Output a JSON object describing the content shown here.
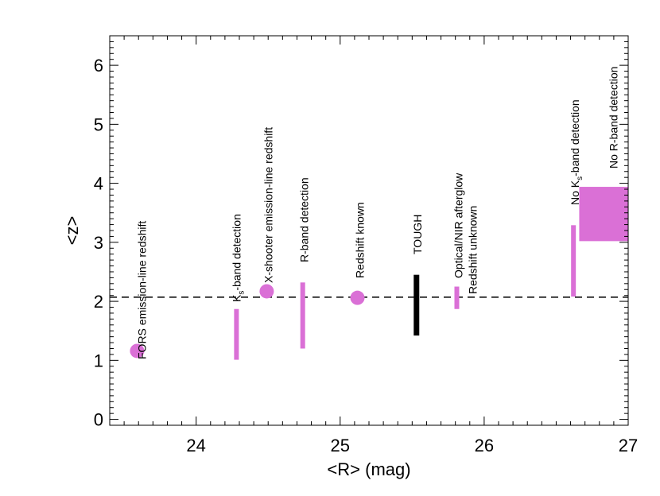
{
  "chart_data": {
    "type": "scatter",
    "title": "",
    "xlabel": "<R> (mag)",
    "ylabel": "<z>",
    "xlim": [
      23.4,
      27.0
    ],
    "ylim": [
      -0.1,
      6.5
    ],
    "xticks": [
      24,
      25,
      26,
      27
    ],
    "yticks": [
      0,
      1,
      2,
      3,
      4,
      5,
      6
    ],
    "grid": false,
    "colors": {
      "magenta": "#da70d6",
      "black": "#000000"
    },
    "reference_line": {
      "style": "dashed",
      "y": 2.07
    },
    "points": [
      {
        "kind": "circle",
        "x": 23.59,
        "y": 1.16,
        "color": "#da70d6",
        "label": [
          {
            "pre": "FORS emission-line redshift",
            "sub": "",
            "post": ""
          }
        ]
      },
      {
        "kind": "bar",
        "x": 24.28,
        "y_low": 1.01,
        "y_high": 1.87,
        "color": "#da70d6",
        "label": [
          {
            "pre": "K",
            "sub": "s",
            "post": "-band detection"
          }
        ]
      },
      {
        "kind": "circle",
        "x": 24.49,
        "y": 2.17,
        "color": "#da70d6",
        "label": [
          {
            "pre": "X-shooter emission-line redshift",
            "sub": "",
            "post": ""
          }
        ]
      },
      {
        "kind": "bar",
        "x": 24.74,
        "y_low": 1.2,
        "y_high": 2.32,
        "color": "#da70d6",
        "label": [
          {
            "pre": "R-band detection",
            "sub": "",
            "post": ""
          }
        ]
      },
      {
        "kind": "circle",
        "x": 25.12,
        "y": 2.06,
        "color": "#da70d6",
        "label": [
          {
            "pre": "Redshift known",
            "sub": "",
            "post": ""
          }
        ]
      },
      {
        "kind": "bar",
        "x": 25.53,
        "y_low": 1.42,
        "y_high": 2.45,
        "color": "#000000",
        "label": [
          {
            "pre": "TOUGH",
            "sub": "",
            "post": ""
          }
        ]
      },
      {
        "kind": "bar",
        "x": 25.81,
        "y_low": 1.87,
        "y_high": 2.25,
        "color": "#da70d6",
        "label": [
          {
            "pre": "Optical/NIR afterglow",
            "sub": "",
            "post": ""
          },
          {
            "pre": "Redshift unknown",
            "sub": "",
            "post": ""
          }
        ]
      },
      {
        "kind": "bar",
        "x": 26.62,
        "y_low": 2.08,
        "y_high": 3.29,
        "color": "#da70d6",
        "label": [
          {
            "pre": "No K",
            "sub": "s",
            "post": "-band detection"
          }
        ]
      },
      {
        "kind": "box",
        "x_low": 26.66,
        "x_high": 27.02,
        "y_low": 3.02,
        "y_high": 3.94,
        "color": "#da70d6",
        "label": [
          {
            "pre": "No R-band detection",
            "sub": "",
            "post": ""
          }
        ]
      }
    ]
  }
}
